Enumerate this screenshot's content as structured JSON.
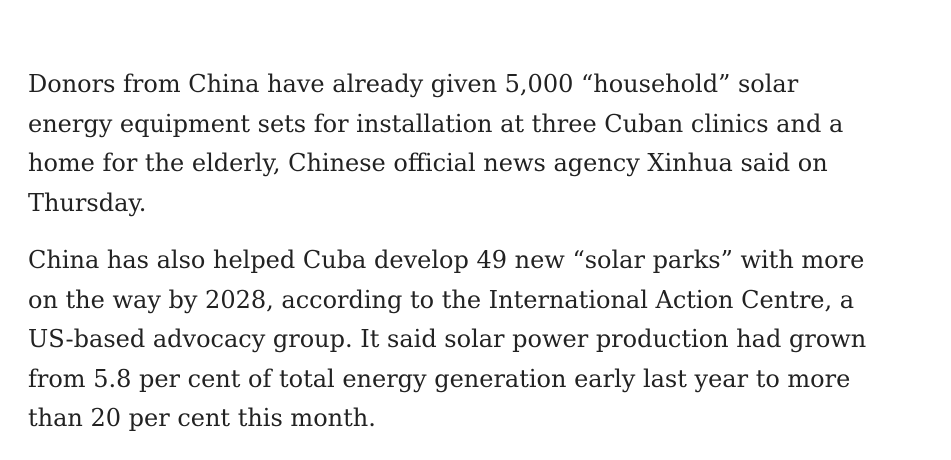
{
  "paragraphs": [
    {
      "lines": [
        "Donors from China have already given 5,000 “household” solar",
        "energy equipment sets for installation at three Cuban clinics and a",
        "home for the elderly, Chinese official news agency Xinhua said on",
        "Thursday."
      ]
    },
    {
      "lines": [
        "China has also helped Cuba develop 49 new “solar parks” with more",
        "on the way by 2028, according to the International Action Centre, a",
        "US-based advocacy group. It said solar power production had grown",
        "from 5.8 per cent of total energy generation early last year to more",
        "than 20 per cent this month."
      ]
    }
  ]
}
